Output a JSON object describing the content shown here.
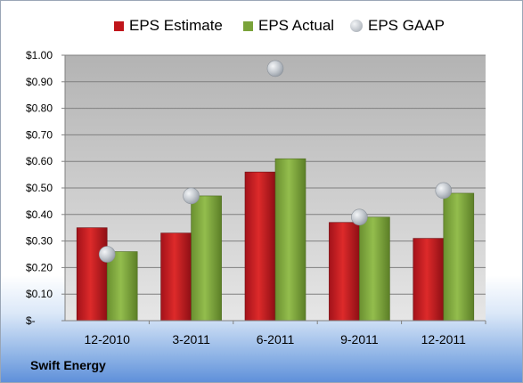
{
  "chart_data": {
    "type": "bar",
    "categories": [
      "12-2010",
      "3-2011",
      "6-2011",
      "9-2011",
      "12-2011"
    ],
    "series": [
      {
        "name": "EPS Estimate",
        "kind": "bar",
        "color": "#c0161b",
        "values": [
          0.35,
          0.33,
          0.56,
          0.37,
          0.31
        ]
      },
      {
        "name": "EPS Actual",
        "kind": "bar",
        "color": "#7aa33a",
        "values": [
          0.26,
          0.47,
          0.61,
          0.39,
          0.48
        ]
      },
      {
        "name": "EPS GAAP",
        "kind": "marker",
        "color": "#b4b9bf",
        "values": [
          0.25,
          0.47,
          0.95,
          0.39,
          0.49
        ]
      }
    ],
    "ylim": [
      0,
      1.0
    ],
    "yticks": [
      "$-",
      "$0.10",
      "$0.20",
      "$0.30",
      "$0.40",
      "$0.50",
      "$0.60",
      "$0.70",
      "$0.80",
      "$0.90",
      "$1.00"
    ],
    "legend_position": "top",
    "grid": true
  },
  "footer": {
    "company": "Swift Energy"
  }
}
